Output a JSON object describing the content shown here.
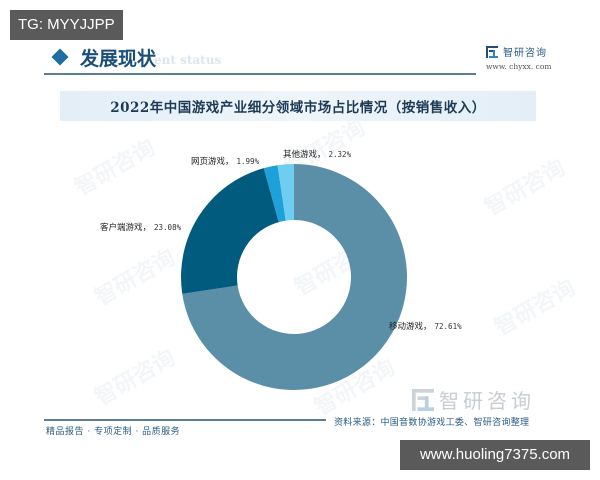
{
  "overlay": {
    "tg_label": "TG: MYYJJPP",
    "url_label": "www.huoling7375.com"
  },
  "header": {
    "section_title": "发展现状",
    "section_subtitle": "ent status",
    "brand_name": "智研咨询",
    "brand_url": "www. chyxx. com"
  },
  "chart_data": {
    "type": "pie",
    "variant": "donut",
    "title": "2022年中国游戏产业细分领域市场占比情况（按销售收入）",
    "unit": "%",
    "categories": [
      "移动游戏",
      "客户端游戏",
      "网页游戏",
      "其他游戏"
    ],
    "values": [
      72.61,
      23.08,
      1.99,
      2.32
    ],
    "labels": [
      "移动游戏，72.61%",
      "客户端游戏，23.08%",
      "网页游戏，1.99%",
      "其他游戏，2.32%"
    ],
    "colors": [
      "#5b8fa8",
      "#005b7f",
      "#1ea0d8",
      "#6fcdf2"
    ],
    "start_angle_deg": 0,
    "direction": "clockwise",
    "legend": "none (labels beside slices)"
  },
  "labels": {
    "mobile": {
      "name": "移动游戏，",
      "pct": "72.61%"
    },
    "client": {
      "name": "客户端游戏，",
      "pct": "23.08%"
    },
    "web": {
      "name": "网页游戏，",
      "pct": "1.99%"
    },
    "other": {
      "name": "其他游戏，",
      "pct": "2.32%"
    }
  },
  "footer": {
    "tagline": "精品报告 · 专项定制 · 品质服务",
    "source": "资料来源：中国音数协游戏工委、智研咨询整理",
    "brand_watermark": "智研咨询",
    "watermark_text": "智研咨询"
  },
  "colors": {
    "accent": "#1f6ea3",
    "title_text": "#1c3a55",
    "title_bar": "#e3eef7",
    "rule": "#5d7d92"
  }
}
